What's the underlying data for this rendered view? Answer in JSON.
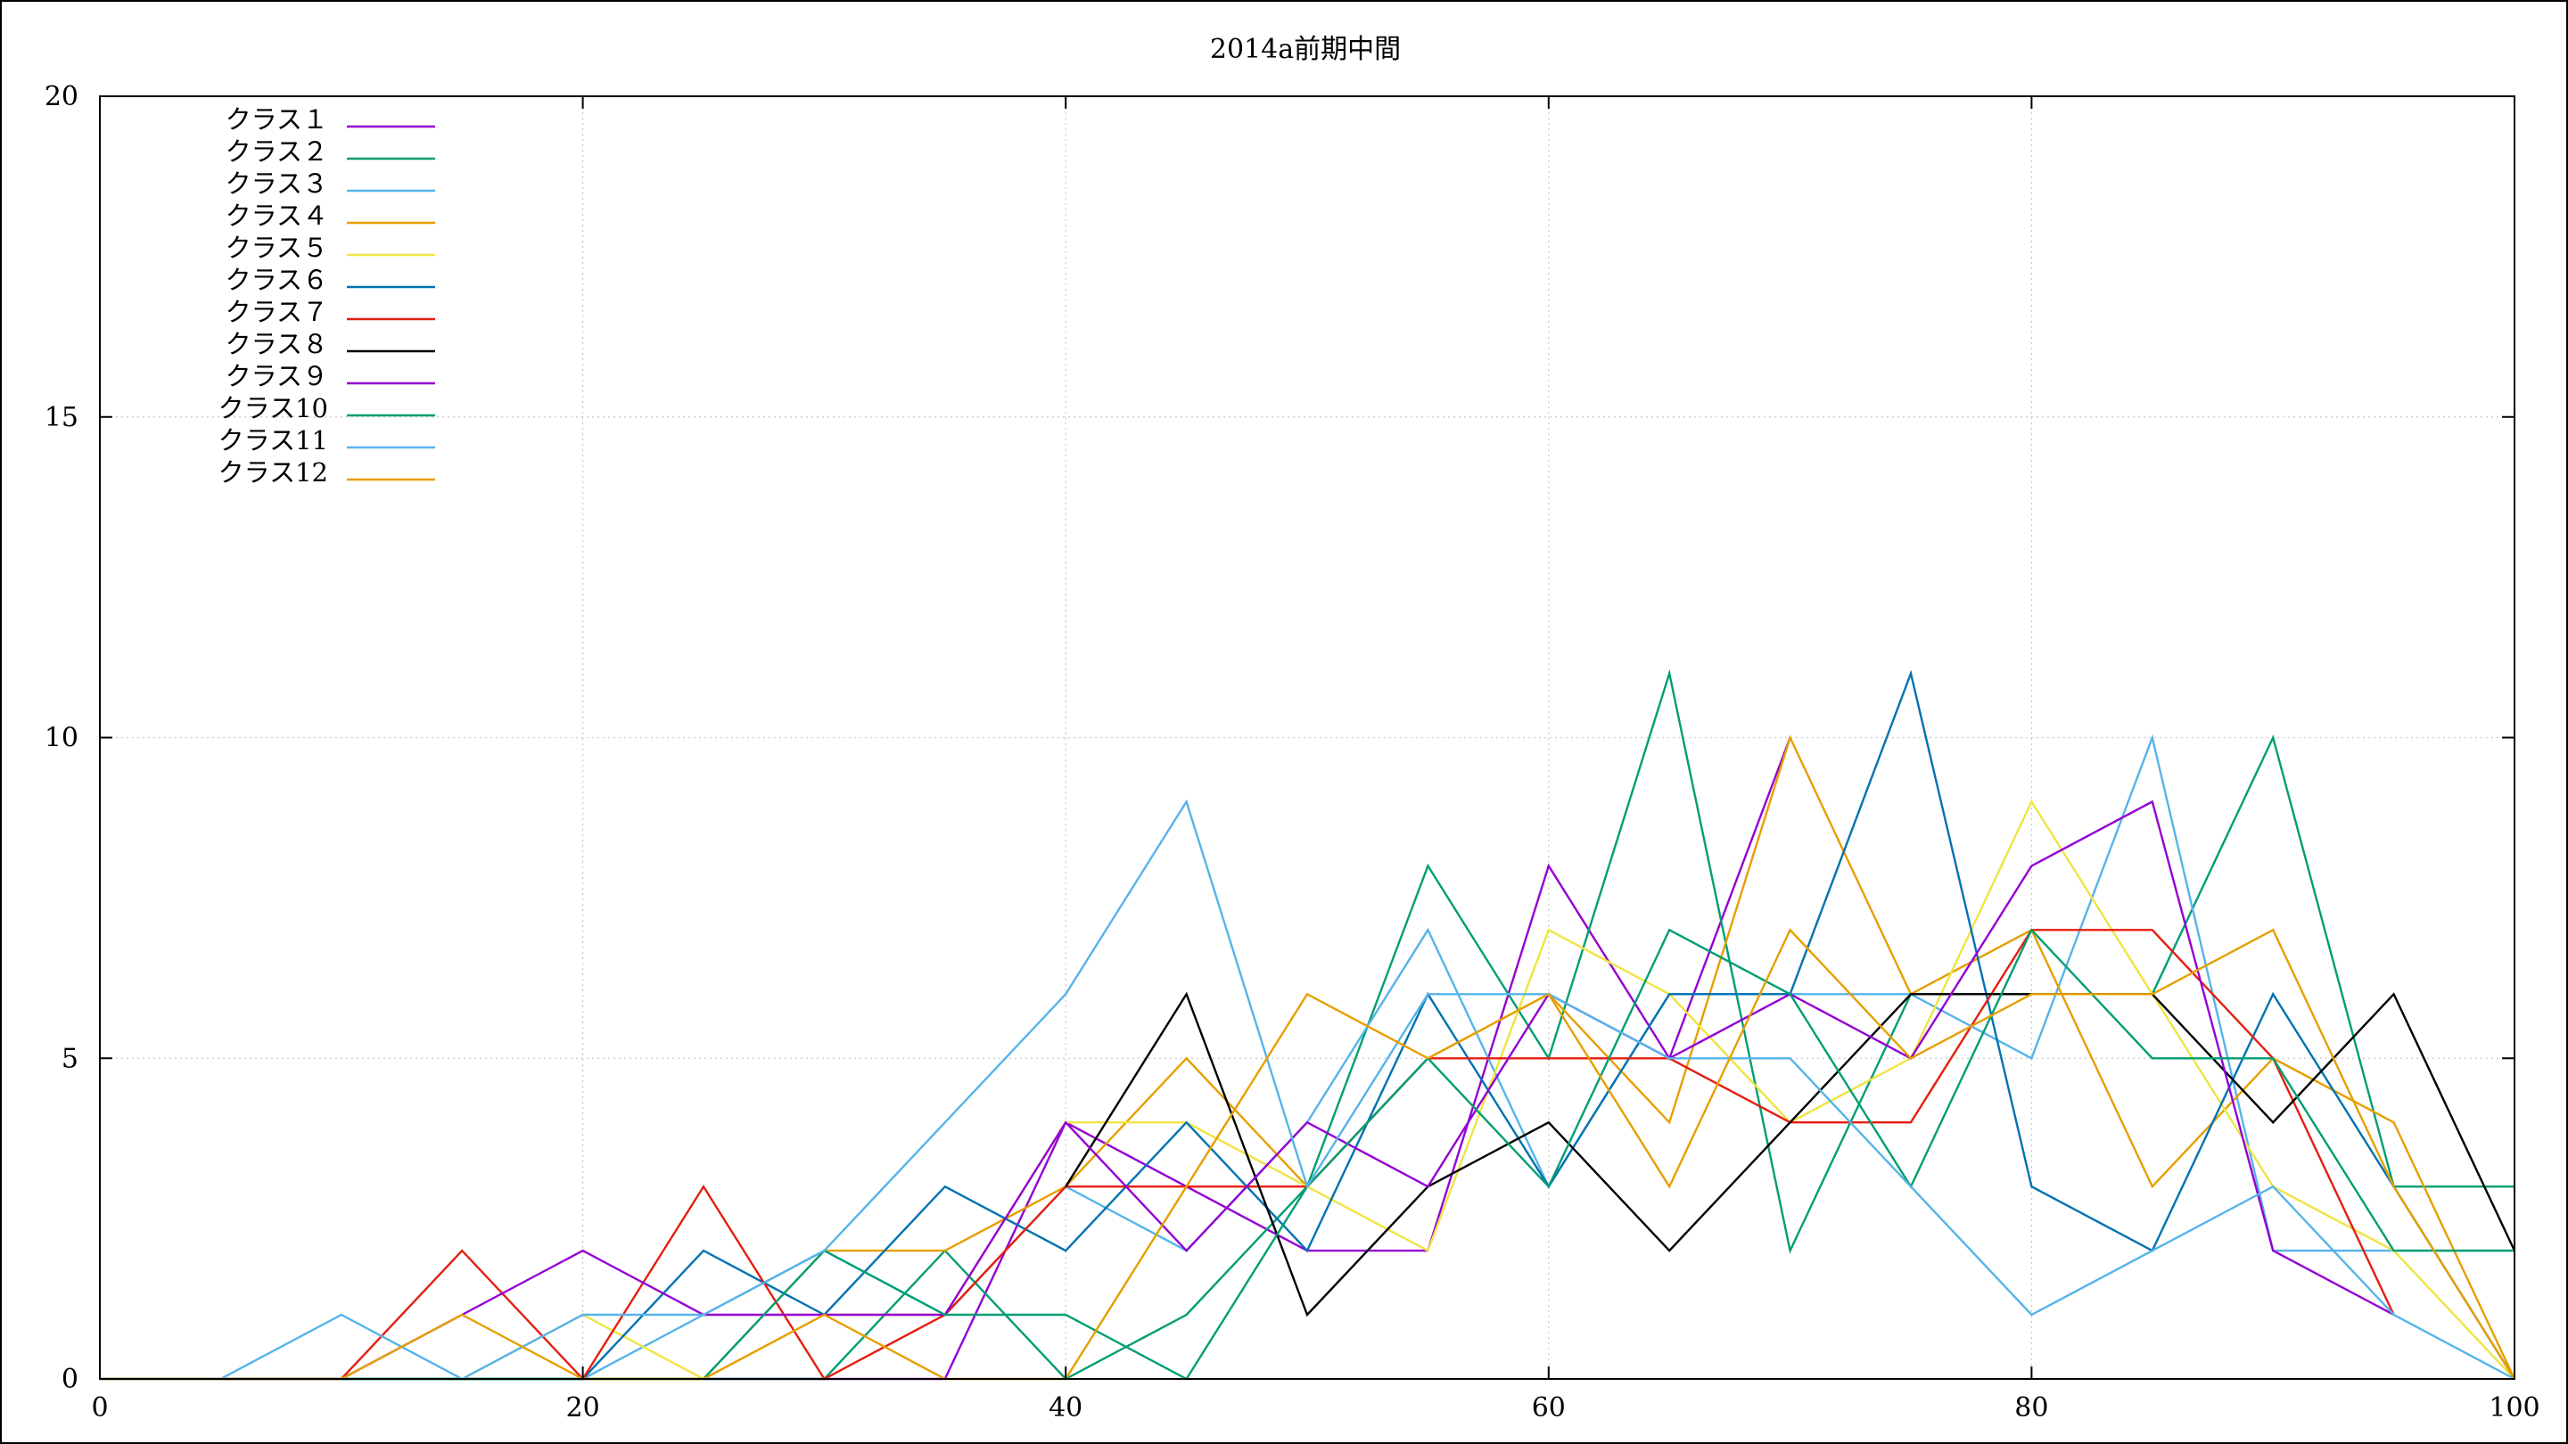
{
  "chart_data": {
    "type": "line",
    "title": "2014a前期中間",
    "xlabel": "",
    "ylabel": "",
    "xlim": [
      0,
      100
    ],
    "ylim": [
      0,
      20
    ],
    "xticks": [
      0,
      20,
      40,
      60,
      80,
      100
    ],
    "yticks": [
      0,
      5,
      10,
      15,
      20
    ],
    "grid": true,
    "legend_position": "top-left",
    "x": [
      0,
      5,
      10,
      15,
      20,
      25,
      30,
      35,
      40,
      45,
      50,
      55,
      60,
      65,
      70,
      75,
      80,
      85,
      90,
      95,
      100
    ],
    "series": [
      {
        "name": "クラス１",
        "color": "#9400d3",
        "values": [
          0,
          0,
          0,
          0,
          0,
          0,
          0,
          0,
          4,
          3,
          2,
          2,
          8,
          5,
          10,
          null,
          null,
          null,
          null,
          null,
          null
        ]
      },
      {
        "name": "クラス２",
        "color": "#009e73",
        "values": [
          0,
          0,
          0,
          0,
          0,
          0,
          0,
          2,
          0,
          1,
          3,
          8,
          5,
          11,
          2,
          6,
          6,
          6,
          10,
          3,
          3
        ]
      },
      {
        "name": "クラス３",
        "color": "#56b4e9",
        "values": [
          0,
          0,
          0,
          0,
          0,
          1,
          2,
          1,
          3,
          2,
          4,
          7,
          3,
          6,
          6,
          6,
          5,
          10,
          2,
          2,
          2
        ]
      },
      {
        "name": "クラス４",
        "color": "#e69f00",
        "values": [
          0,
          0,
          0,
          0,
          0,
          0,
          2,
          2,
          3,
          5,
          3,
          5,
          6,
          4,
          10,
          6,
          7,
          3,
          5,
          4,
          0
        ]
      },
      {
        "name": "クラス５",
        "color": "#f0e442",
        "values": [
          0,
          0,
          0,
          0,
          1,
          0,
          1,
          1,
          4,
          4,
          3,
          2,
          7,
          6,
          4,
          5,
          9,
          6,
          3,
          2,
          0
        ]
      },
      {
        "name": "クラス６",
        "color": "#0072b2",
        "values": [
          0,
          0,
          0,
          0,
          0,
          2,
          1,
          3,
          2,
          4,
          2,
          6,
          3,
          6,
          6,
          11,
          3,
          2,
          6,
          3,
          0
        ]
      },
      {
        "name": "クラス７",
        "color": "#e51e10",
        "values": [
          0,
          0,
          0,
          2,
          0,
          3,
          0,
          1,
          3,
          3,
          3,
          5,
          5,
          5,
          4,
          4,
          7,
          7,
          5,
          1,
          null
        ]
      },
      {
        "name": "クラス８",
        "color": "#000000",
        "values": [
          null,
          null,
          null,
          null,
          null,
          null,
          null,
          null,
          3,
          6,
          1,
          3,
          4,
          2,
          4,
          6,
          6,
          6,
          4,
          6,
          2
        ]
      },
      {
        "name": "クラス９",
        "color": "#9400d3",
        "values": [
          0,
          0,
          0,
          1,
          2,
          1,
          1,
          1,
          4,
          2,
          4,
          3,
          6,
          5,
          6,
          5,
          8,
          9,
          2,
          1,
          null
        ]
      },
      {
        "name": "クラス10",
        "color": "#009e73",
        "values": [
          0,
          0,
          0,
          0,
          0,
          0,
          2,
          1,
          1,
          0,
          3,
          5,
          3,
          7,
          6,
          3,
          7,
          5,
          5,
          2,
          2
        ]
      },
      {
        "name": "クラス11",
        "color": "#56b4e9",
        "values": [
          0,
          0,
          1,
          0,
          1,
          1,
          2,
          4,
          6,
          9,
          3,
          6,
          6,
          5,
          5,
          3,
          1,
          2,
          3,
          1,
          0
        ]
      },
      {
        "name": "クラス12",
        "color": "#e69f00",
        "values": [
          0,
          0,
          0,
          1,
          0,
          0,
          1,
          0,
          0,
          3,
          6,
          5,
          6,
          3,
          7,
          5,
          6,
          6,
          7,
          3,
          0
        ]
      }
    ]
  }
}
